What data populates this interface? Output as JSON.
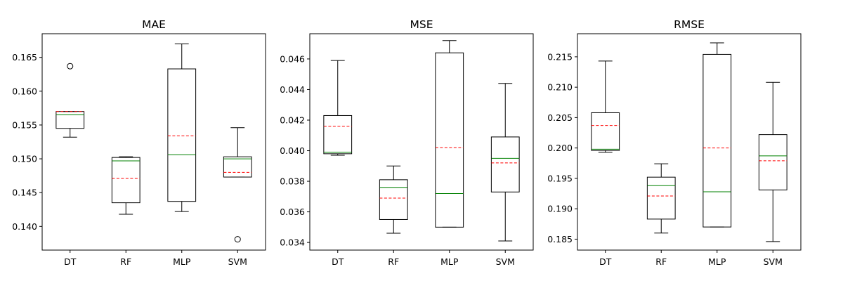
{
  "chart_data": [
    {
      "type": "boxplot",
      "title": "MAE",
      "categories": [
        "DT",
        "RF",
        "MLP",
        "SVM"
      ],
      "ylim": [
        0.1365,
        0.1685
      ],
      "yticks": [
        0.14,
        0.145,
        0.15,
        0.155,
        0.16,
        0.165
      ],
      "ytick_labels": [
        "0.140",
        "0.145",
        "0.150",
        "0.155",
        "0.160",
        "0.165"
      ],
      "boxes": [
        {
          "whislo": 0.1532,
          "q1": 0.1545,
          "med": 0.1565,
          "mean": 0.157,
          "q3": 0.157,
          "whishi": 0.157,
          "fliers": [
            0.1637
          ]
        },
        {
          "whislo": 0.1418,
          "q1": 0.1435,
          "med": 0.1497,
          "mean": 0.1471,
          "q3": 0.1502,
          "whishi": 0.1503,
          "fliers": []
        },
        {
          "whislo": 0.1422,
          "q1": 0.1437,
          "med": 0.1506,
          "mean": 0.1534,
          "q3": 0.1633,
          "whishi": 0.167,
          "fliers": []
        },
        {
          "whislo": 0.1473,
          "q1": 0.1473,
          "med": 0.15,
          "mean": 0.148,
          "q3": 0.1503,
          "whishi": 0.1546,
          "fliers": [
            0.1381
          ]
        }
      ]
    },
    {
      "type": "boxplot",
      "title": "MSE",
      "categories": [
        "DT",
        "RF",
        "MLP",
        "SVM"
      ],
      "ylim": [
        0.0335,
        0.04765
      ],
      "yticks": [
        0.034,
        0.036,
        0.038,
        0.04,
        0.042,
        0.044,
        0.046
      ],
      "ytick_labels": [
        "0.034",
        "0.036",
        "0.038",
        "0.040",
        "0.042",
        "0.044",
        "0.046"
      ],
      "boxes": [
        {
          "whislo": 0.0397,
          "q1": 0.0398,
          "med": 0.0399,
          "mean": 0.0416,
          "q3": 0.0423,
          "whishi": 0.0459,
          "fliers": []
        },
        {
          "whislo": 0.0346,
          "q1": 0.0355,
          "med": 0.0376,
          "mean": 0.0369,
          "q3": 0.0381,
          "whishi": 0.039,
          "fliers": []
        },
        {
          "whislo": 0.035,
          "q1": 0.035,
          "med": 0.0372,
          "mean": 0.0402,
          "q3": 0.0464,
          "whishi": 0.0472,
          "fliers": []
        },
        {
          "whislo": 0.0341,
          "q1": 0.0373,
          "med": 0.0395,
          "mean": 0.0392,
          "q3": 0.0409,
          "whishi": 0.0444,
          "fliers": []
        }
      ]
    },
    {
      "type": "boxplot",
      "title": "RMSE",
      "categories": [
        "DT",
        "RF",
        "MLP",
        "SVM"
      ],
      "ylim": [
        0.1832,
        0.2188
      ],
      "yticks": [
        0.185,
        0.19,
        0.195,
        0.2,
        0.205,
        0.21,
        0.215
      ],
      "ytick_labels": [
        "0.185",
        "0.190",
        "0.195",
        "0.200",
        "0.205",
        "0.210",
        "0.215"
      ],
      "boxes": [
        {
          "whislo": 0.1993,
          "q1": 0.1996,
          "med": 0.1998,
          "mean": 0.2037,
          "q3": 0.2058,
          "whishi": 0.2143,
          "fliers": []
        },
        {
          "whislo": 0.186,
          "q1": 0.1883,
          "med": 0.1938,
          "mean": 0.1921,
          "q3": 0.1952,
          "whishi": 0.1974,
          "fliers": []
        },
        {
          "whislo": 0.187,
          "q1": 0.187,
          "med": 0.1928,
          "mean": 0.2,
          "q3": 0.2154,
          "whishi": 0.2173,
          "fliers": []
        },
        {
          "whislo": 0.1846,
          "q1": 0.1931,
          "med": 0.1987,
          "mean": 0.1979,
          "q3": 0.2022,
          "whishi": 0.2108,
          "fliers": []
        }
      ]
    }
  ],
  "style": {
    "box_color": "#000000",
    "median_color": "#008000",
    "mean_color": "#ff0000",
    "background": "#ffffff"
  }
}
